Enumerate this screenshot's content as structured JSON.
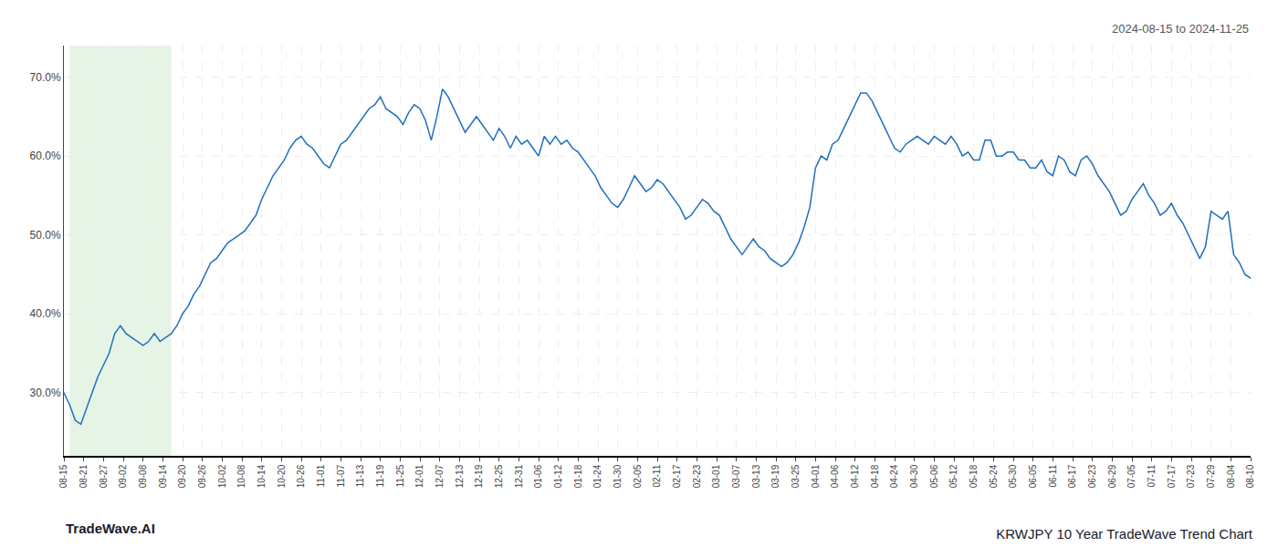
{
  "chart_data": {
    "type": "line",
    "title": "KRWJPY 10 Year TradeWave Trend Chart",
    "subtitle": "2024-08-15 to 2024-11-25",
    "annotations": [
      "TradeWave.AI"
    ],
    "color": "#1f6fbf",
    "grid": true,
    "highlight": {
      "start": 1,
      "end": 19,
      "color": "#c8e6c8"
    },
    "x": [
      0,
      1,
      2,
      3,
      4,
      5,
      6,
      7,
      8,
      9,
      10,
      11,
      12,
      13,
      14,
      15,
      16,
      17,
      18,
      19,
      20,
      21,
      22,
      23,
      24,
      25,
      26,
      27,
      28,
      29,
      30,
      31,
      32,
      33,
      34,
      35,
      36,
      37,
      38,
      39,
      40,
      41,
      42,
      43,
      44,
      45,
      46,
      47,
      48,
      49,
      50,
      51,
      52,
      53,
      54,
      55,
      56,
      57,
      58,
      59,
      60,
      61,
      62,
      63,
      64,
      65,
      66,
      67,
      68,
      69,
      70,
      71,
      72,
      73,
      74,
      75,
      76,
      77,
      78,
      79,
      80,
      81,
      82,
      83,
      84,
      85,
      86,
      87,
      88,
      89,
      90,
      91,
      92,
      93,
      94,
      95,
      96,
      97,
      98,
      99,
      100,
      101,
      102,
      103,
      104,
      105,
      106,
      107,
      108,
      109,
      110,
      111,
      112,
      113,
      114,
      115,
      116,
      117,
      118,
      119,
      120,
      121,
      122,
      123,
      124,
      125,
      126,
      127,
      128,
      129,
      130,
      131,
      132,
      133,
      134,
      135,
      136,
      137,
      138,
      139,
      140,
      141,
      142,
      143,
      144,
      145,
      146,
      147,
      148,
      149,
      150,
      151,
      152,
      153,
      154,
      155,
      156,
      157,
      158,
      159,
      160,
      161,
      162,
      163,
      164,
      165,
      166,
      167,
      168,
      169,
      170,
      171,
      172,
      173,
      174,
      175,
      176,
      177,
      178,
      179,
      180,
      181,
      182,
      183,
      184,
      185,
      186,
      187,
      188,
      189,
      190,
      191,
      192,
      193,
      194,
      195,
      196,
      197,
      198,
      199,
      200,
      201,
      202,
      203,
      204,
      205,
      206,
      207,
      208,
      209,
      210
    ],
    "values": [
      30.0,
      28.5,
      26.5,
      26.0,
      28.0,
      30.0,
      32.0,
      33.5,
      35.0,
      37.5,
      38.5,
      37.5,
      37.0,
      36.5,
      36.0,
      36.5,
      37.5,
      36.5,
      37.0,
      37.5,
      38.5,
      40.0,
      41.0,
      42.5,
      43.5,
      45.0,
      46.5,
      47.0,
      48.0,
      49.0,
      49.5,
      50.0,
      50.5,
      51.5,
      52.5,
      54.5,
      56.0,
      57.5,
      58.5,
      59.5,
      61.0,
      62.0,
      62.5,
      61.5,
      61.0,
      60.0,
      59.0,
      58.5,
      60.0,
      61.5,
      62.0,
      63.0,
      64.0,
      65.0,
      66.0,
      66.5,
      67.5,
      66.0,
      65.5,
      65.0,
      64.0,
      65.5,
      66.5,
      66.0,
      64.5,
      62.0,
      65.0,
      68.5,
      67.5,
      66.0,
      64.5,
      63.0,
      64.0,
      65.0,
      64.0,
      63.0,
      62.0,
      63.5,
      62.5,
      61.0,
      62.5,
      61.5,
      62.0,
      61.0,
      60.0,
      62.5,
      61.5,
      62.5,
      61.5,
      62.0,
      61.0,
      60.5,
      59.5,
      58.5,
      57.5,
      56.0,
      55.0,
      54.0,
      53.5,
      54.5,
      56.0,
      57.5,
      56.5,
      55.5,
      56.0,
      57.0,
      56.5,
      55.5,
      54.5,
      53.5,
      52.0,
      52.5,
      53.5,
      54.5,
      54.0,
      53.0,
      52.5,
      51.0,
      49.5,
      48.5,
      47.5,
      48.5,
      49.5,
      48.5,
      48.0,
      47.0,
      46.5,
      46.0,
      46.5,
      47.5,
      49.0,
      51.0,
      53.5,
      58.5,
      60.0,
      59.5,
      61.5,
      62.0,
      63.5,
      65.0,
      66.5,
      68.0,
      68.0,
      67.0,
      65.5,
      64.0,
      62.5,
      61.0,
      60.5,
      61.5,
      62.0,
      62.5,
      62.0,
      61.5,
      62.5,
      62.0,
      61.5,
      62.5,
      61.5,
      60.0,
      60.5,
      59.5,
      59.5,
      62.0,
      62.0,
      60.0,
      60.0,
      60.5,
      60.5,
      59.5,
      59.5,
      58.5,
      58.5,
      59.5,
      58.0,
      57.5,
      60.0,
      59.5,
      58.0,
      57.5,
      59.5,
      60.0,
      59.0,
      57.5,
      56.5,
      55.5,
      54.0,
      52.5,
      53.0,
      54.5,
      55.5,
      56.5,
      55.0,
      54.0,
      52.5,
      53.0,
      54.0,
      52.5,
      51.5,
      50.0,
      48.5,
      47.0,
      48.5,
      53.0,
      52.5,
      52.0,
      53.0,
      47.5,
      46.5,
      45.0,
      44.5
    ],
    "xlim": [
      0,
      210
    ],
    "xticks": [
      {
        "value": 0,
        "label": "08-15"
      },
      {
        "value": 3.5,
        "label": "08-21"
      },
      {
        "value": 7,
        "label": "08-27"
      },
      {
        "value": 10.5,
        "label": "09-02"
      },
      {
        "value": 14,
        "label": "09-08"
      },
      {
        "value": 17.5,
        "label": "09-14"
      },
      {
        "value": 21,
        "label": "09-20"
      },
      {
        "value": 24.5,
        "label": "09-26"
      },
      {
        "value": 28,
        "label": "10-02"
      },
      {
        "value": 31.5,
        "label": "10-08"
      },
      {
        "value": 35,
        "label": "10-14"
      },
      {
        "value": 38.5,
        "label": "10-20"
      },
      {
        "value": 42,
        "label": "10-26"
      },
      {
        "value": 45.5,
        "label": "11-01"
      },
      {
        "value": 49,
        "label": "11-07"
      },
      {
        "value": 52.5,
        "label": "11-13"
      },
      {
        "value": 56,
        "label": "11-19"
      },
      {
        "value": 59.5,
        "label": "11-25"
      },
      {
        "value": 63,
        "label": "12-01"
      },
      {
        "value": 66.5,
        "label": "12-07"
      },
      {
        "value": 70,
        "label": "12-13"
      },
      {
        "value": 73.5,
        "label": "12-19"
      },
      {
        "value": 77,
        "label": "12-25"
      },
      {
        "value": 80.5,
        "label": "12-31"
      },
      {
        "value": 84,
        "label": "01-06"
      },
      {
        "value": 87.5,
        "label": "01-12"
      },
      {
        "value": 91,
        "label": "01-18"
      },
      {
        "value": 94.5,
        "label": "01-24"
      },
      {
        "value": 98,
        "label": "01-30"
      },
      {
        "value": 101.5,
        "label": "02-05"
      },
      {
        "value": 105,
        "label": "02-11"
      },
      {
        "value": 108.5,
        "label": "02-17"
      },
      {
        "value": 112,
        "label": "02-23"
      },
      {
        "value": 115.5,
        "label": "03-01"
      },
      {
        "value": 119,
        "label": "03-07"
      },
      {
        "value": 122.5,
        "label": "03-13"
      },
      {
        "value": 126,
        "label": "03-19"
      },
      {
        "value": 129.5,
        "label": "03-25"
      },
      {
        "value": 133,
        "label": "04-01"
      },
      {
        "value": 136.5,
        "label": "04-06"
      },
      {
        "value": 140,
        "label": "04-12"
      },
      {
        "value": 143.5,
        "label": "04-18"
      },
      {
        "value": 147,
        "label": "04-24"
      },
      {
        "value": 150.5,
        "label": "04-30"
      },
      {
        "value": 154,
        "label": "05-06"
      },
      {
        "value": 157.5,
        "label": "05-12"
      },
      {
        "value": 161,
        "label": "05-18"
      },
      {
        "value": 164.5,
        "label": "05-24"
      },
      {
        "value": 168,
        "label": "05-30"
      },
      {
        "value": 171.5,
        "label": "06-05"
      },
      {
        "value": 175,
        "label": "06-11"
      },
      {
        "value": 178.5,
        "label": "06-17"
      },
      {
        "value": 182,
        "label": "06-23"
      },
      {
        "value": 185.5,
        "label": "06-29"
      },
      {
        "value": 189,
        "label": "07-05"
      },
      {
        "value": 192.5,
        "label": "07-11"
      },
      {
        "value": 196,
        "label": "07-17"
      },
      {
        "value": 199.5,
        "label": "07-23"
      },
      {
        "value": 203,
        "label": "07-29"
      },
      {
        "value": 206.5,
        "label": "08-04"
      },
      {
        "value": 210,
        "label": "08-10"
      }
    ],
    "ylim": [
      22,
      74
    ],
    "yticks": [
      {
        "value": 30.0,
        "label": "30.0%"
      },
      {
        "value": 40.0,
        "label": "40.0%"
      },
      {
        "value": 50.0,
        "label": "50.0%"
      },
      {
        "value": 60.0,
        "label": "60.0%"
      },
      {
        "value": 70.0,
        "label": "70.0%"
      }
    ]
  }
}
